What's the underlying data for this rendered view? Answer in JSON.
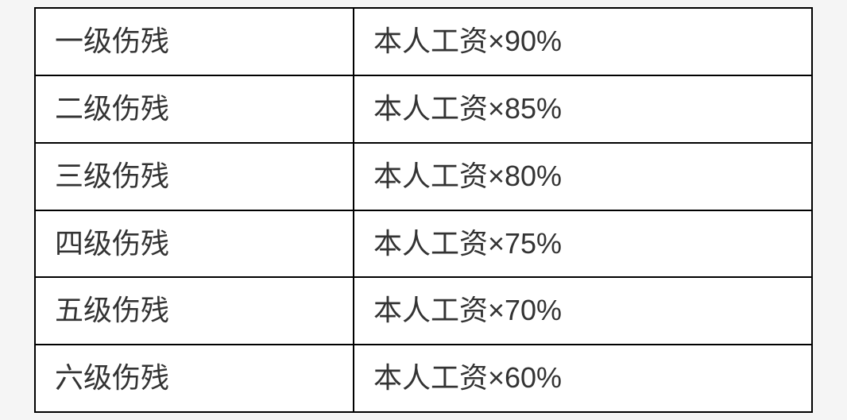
{
  "table": {
    "columns": [
      "level",
      "formula"
    ],
    "column_widths": [
      "41%",
      "59%"
    ],
    "border_color": "#000000",
    "border_width": 2,
    "background_color": "#ffffff",
    "text_color": "#333333",
    "font_size": 36,
    "cell_padding": "18px 24px",
    "rows": [
      {
        "level": "一级伤残",
        "formula": "本人工资×90%"
      },
      {
        "level": "二级伤残",
        "formula": "本人工资×85%"
      },
      {
        "level": "三级伤残",
        "formula": "本人工资×80%"
      },
      {
        "level": "四级伤残",
        "formula": "本人工资×75%"
      },
      {
        "level": "五级伤残",
        "formula": "本人工资×70%"
      },
      {
        "level": "六级伤残",
        "formula": "本人工资×60%"
      }
    ]
  }
}
